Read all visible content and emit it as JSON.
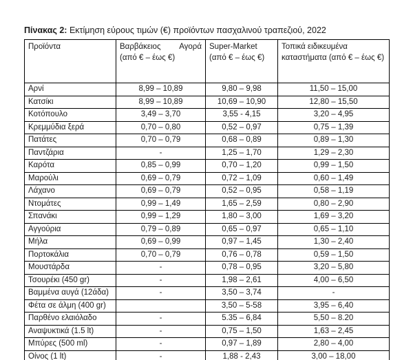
{
  "title": {
    "label": "Πίνακας 2:",
    "text": "Εκτίμηση εύρους τιμών (€) προϊόντων πασχαλινού τραπεζιού, 2022"
  },
  "table": {
    "headers": {
      "products": "Προϊόντα",
      "varvakios": {
        "name_left": "Βαρβάκειος",
        "name_right": "Αγορά",
        "range": "(από € –  έως €)"
      },
      "supermarket": {
        "name": "Super-Market",
        "range": "(από € –  έως €)"
      },
      "local": "Τοπικά ειδικευμένα καταστήματα (από € – έως €)"
    },
    "rows": [
      {
        "product": "Αρνί",
        "varvakios": "8,99 – 10,89",
        "supermarket": "9,80 – 9,98",
        "local": "11,50 – 15,00"
      },
      {
        "product": "Κατσίκι",
        "varvakios": "8,99 – 10,89",
        "supermarket": "10,69 – 10,90",
        "local": "12,80 – 15,50"
      },
      {
        "product": "Κοτόπουλο",
        "varvakios": "3,49 – 3,70",
        "supermarket": "3,55 - 4,15",
        "local": "3,20 – 4,95"
      },
      {
        "product": "Κρεμμύδια ξερά",
        "varvakios": "0,70 – 0,80",
        "supermarket": "0,52 – 0,97",
        "local": "0,75 – 1,39"
      },
      {
        "product": "Πατάτες",
        "varvakios": "0,70 – 0,79",
        "supermarket": "0,68 – 0,89",
        "local": "0,89 – 1,30"
      },
      {
        "product": "Παντζάρια",
        "varvakios": "-",
        "supermarket": "1,25 – 1,70",
        "local": "1,29 – 2,30"
      },
      {
        "product": "Καρότα",
        "varvakios": "0,85 – 0,99",
        "supermarket": "0,70 – 1,20",
        "local": "0,99 – 1,50"
      },
      {
        "product": "Μαρούλι",
        "varvakios": "0,69 – 0,79",
        "supermarket": "0,72 – 1,09",
        "local": "0,60 – 1,49"
      },
      {
        "product": "Λάχανο",
        "varvakios": "0,69 – 0,79",
        "supermarket": "0,52 – 0,95",
        "local": "0,58 – 1,19"
      },
      {
        "product": "Ντομάτες",
        "varvakios": "0,99 – 1,49",
        "supermarket": "1,65 – 2,59",
        "local": "0,80 – 2,90"
      },
      {
        "product": "Σπανάκι",
        "varvakios": "0,99 – 1,29",
        "supermarket": "1,80 – 3,00",
        "local": "1,69 – 3,20"
      },
      {
        "product": "Αγγούρια",
        "varvakios": "0,79 – 0,89",
        "supermarket": "0,65 – 0,97",
        "local": "0,65 – 1,10"
      },
      {
        "product": "Μήλα",
        "varvakios": "0,69 – 0,99",
        "supermarket": "0,97 – 1,45",
        "local": "1,30 – 2,40"
      },
      {
        "product": "Πορτοκάλια",
        "varvakios": "0,70 – 0,79",
        "supermarket": "0,76 – 0,78",
        "local": "0,59 – 1,50"
      },
      {
        "product": "Μουστάρδα",
        "varvakios": "-",
        "supermarket": "0,78 – 0,95",
        "local": "3,20 – 5,80"
      },
      {
        "product": "Τσουρέκι (450 gr)",
        "varvakios": "-",
        "supermarket": "1,98 – 2,61",
        "local": "4,00 – 6,50"
      },
      {
        "product": "Βαμμένα αυγά (12άδα)",
        "varvakios": "-",
        "supermarket": "3,50 – 3,74",
        "local": "-"
      },
      {
        "product": "Φέτα σε άλμη (400 gr)",
        "varvakios": "",
        "supermarket": "3,50 – 5-58",
        "local": "3,95 – 6,40"
      },
      {
        "product": "Παρθένο ελαιόλαδο",
        "varvakios": "-",
        "supermarket": "5.35 – 6,84",
        "local": "5,50 – 8.20"
      },
      {
        "product": "Αναψυκτικά (1.5 lt)",
        "varvakios": "-",
        "supermarket": "0,75 – 1,50",
        "local": "1,63 – 2,45"
      },
      {
        "product": "Μπύρες (500 ml)",
        "varvakios": "-",
        "supermarket": "0,97 – 1,89",
        "local": "2,80 – 4,00"
      },
      {
        "product": "Οίνος (1 lt)",
        "varvakios": "-",
        "supermarket": "1,88 - 2,43",
        "local": "3,00 – 18,00"
      }
    ]
  }
}
